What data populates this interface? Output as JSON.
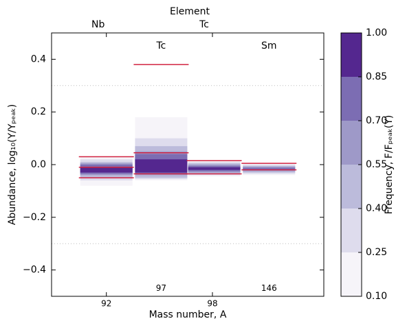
{
  "chart_data": {
    "type": "band-columns",
    "top_axis_label": "Element",
    "xlabel": "Mass number, A",
    "ylabel": "Abundance, log₁₀(Y/Yₚₑₐₖ)",
    "xlim": [
      88.9,
      104.3
    ],
    "xticks": [
      92,
      98
    ],
    "top_xticks": [
      {
        "value": 92,
        "label": "Nb"
      },
      {
        "value": 98,
        "label": "Tc"
      }
    ],
    "ylim": [
      -0.5,
      0.5
    ],
    "yticks": [
      {
        "value": 0.4,
        "label": "0.4"
      },
      {
        "value": 0.2,
        "label": "0.2"
      },
      {
        "value": 0,
        "label": "0.0"
      },
      {
        "value": -0.2,
        "label": "−0.2"
      },
      {
        "value": -0.4,
        "label": "−0.4"
      }
    ],
    "reference_lines": [
      0.3,
      -0.3
    ],
    "line_color": "#d0203f",
    "columns": [
      {
        "x": 92,
        "bands": [
          [
            -0.08,
            0.03,
            0.1
          ],
          [
            -0.06,
            0.02,
            0.25
          ],
          [
            -0.05,
            0.01,
            0.4
          ],
          [
            -0.04,
            0.005,
            0.55
          ],
          [
            -0.035,
            0.0,
            0.7
          ],
          [
            -0.03,
            -0.01,
            0.85
          ]
        ],
        "lines": [
          0.03,
          -0.01,
          -0.05
        ]
      },
      {
        "x": 95.1,
        "top_label": "Tc",
        "bottom_label": "97",
        "bands": [
          [
            -0.06,
            0.18,
            0.1
          ],
          [
            -0.055,
            0.1,
            0.25
          ],
          [
            -0.05,
            0.07,
            0.4
          ],
          [
            -0.04,
            0.05,
            0.55
          ],
          [
            -0.035,
            0.04,
            0.7
          ],
          [
            -0.03,
            0.02,
            0.85
          ]
        ],
        "lines": [
          0.38,
          0.045,
          -0.035
        ]
      },
      {
        "x": 98.1,
        "bands": [
          [
            -0.045,
            0.015,
            0.1
          ],
          [
            -0.04,
            0.01,
            0.25
          ],
          [
            -0.035,
            0.005,
            0.4
          ],
          [
            -0.03,
            0.0,
            0.55
          ],
          [
            -0.025,
            -0.005,
            0.7
          ],
          [
            -0.02,
            -0.01,
            0.85
          ]
        ],
        "lines": [
          0.015,
          -0.035
        ]
      },
      {
        "x": 101.2,
        "top_label": "Sm",
        "bottom_label": "146",
        "bands": [
          [
            -0.04,
            0.005,
            0.1
          ],
          [
            -0.035,
            0.0,
            0.25
          ],
          [
            -0.03,
            -0.005,
            0.4
          ],
          [
            -0.025,
            -0.008,
            0.55
          ],
          [
            -0.02,
            -0.012,
            0.7
          ]
        ],
        "lines": [
          0.005,
          -0.02
        ]
      }
    ],
    "colorbar": {
      "label": "Frequency, F/Fₚₑₐₖ(Y)",
      "ticks": [
        {
          "value": 0.1,
          "label": "0.10"
        },
        {
          "value": 0.25,
          "label": "0.25"
        },
        {
          "value": 0.4,
          "label": "0.40"
        },
        {
          "value": 0.55,
          "label": "0.55"
        },
        {
          "value": 0.7,
          "label": "0.70"
        },
        {
          "value": 0.85,
          "label": "0.85"
        },
        {
          "value": 1,
          "label": "1.00"
        }
      ],
      "colors": [
        "#f6f4f9",
        "#dedced",
        "#bcbbdb",
        "#9e99c8",
        "#7c6db3",
        "#54278f"
      ]
    }
  }
}
